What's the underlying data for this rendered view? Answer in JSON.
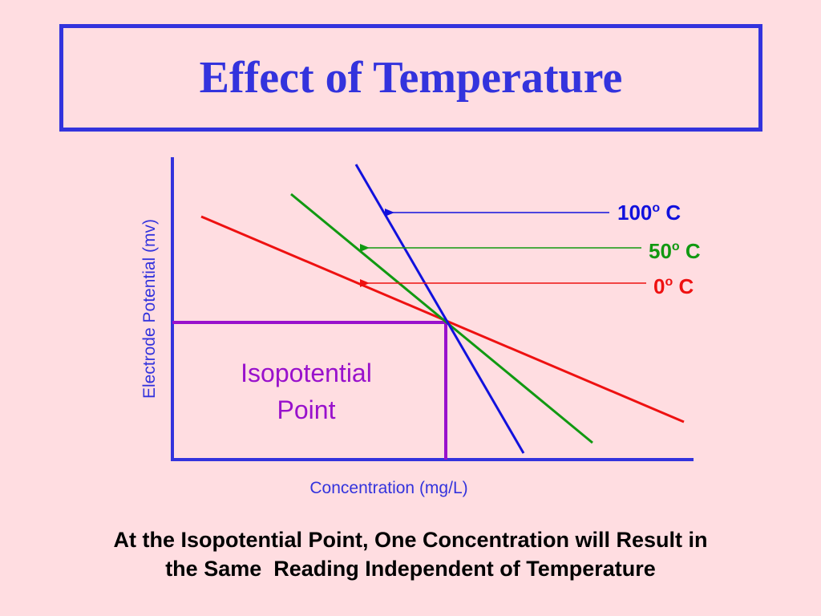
{
  "title": "Effect of Temperature",
  "colors": {
    "background": "#FFDDE1",
    "title": "#3333DD",
    "axis": "#3333DD",
    "hot": "#1111DD",
    "warm": "#119911",
    "cold": "#EE1111",
    "isopotential": "#9911CC",
    "caption": "#000000"
  },
  "axes": {
    "x_label": "Concentration (mg/L)",
    "y_label": "Electrode Potential (mv)"
  },
  "lines": [
    {
      "id": "line-100c",
      "label_main": "100",
      "label_sup": "o",
      "label_unit": " C",
      "color": "#1111DD"
    },
    {
      "id": "line-50c",
      "label_main": "50",
      "label_sup": "o",
      "label_unit": " C",
      "color": "#119911"
    },
    {
      "id": "line-0c",
      "label_main": "0",
      "label_sup": "o",
      "label_unit": " C",
      "color": "#EE1111"
    }
  ],
  "isopotential": {
    "line1": "Isopotential",
    "line2": "Point"
  },
  "caption": {
    "line1": "At the Isopotential Point, One Concentration will Result in",
    "line2": "the Same  Reading Independent of Temperature"
  }
}
